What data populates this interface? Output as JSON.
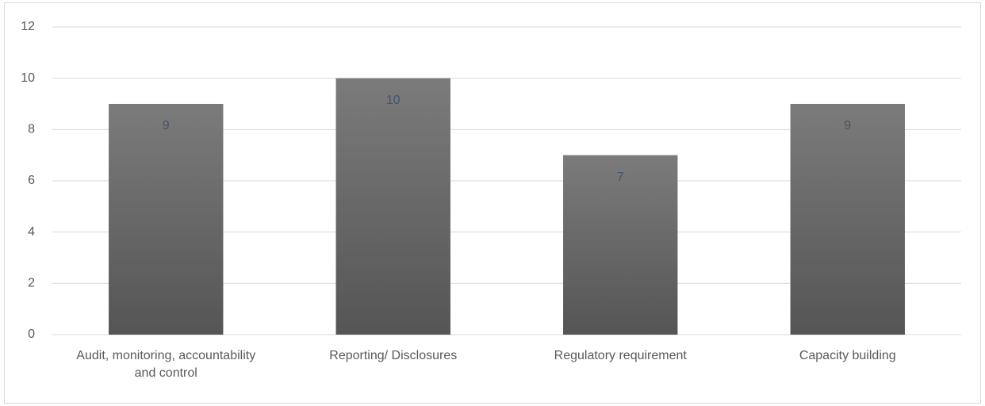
{
  "chart_data": {
    "type": "bar",
    "categories": [
      "Audit, monitoring, accountability and control",
      "Reporting/  Disclosures",
      "Regulatory requirement",
      "Capacity building"
    ],
    "values": [
      9,
      10,
      7,
      9
    ],
    "color": "#555555",
    "label_color": "#44546a",
    "ylim": [
      0,
      12
    ],
    "yticks": [
      0,
      2,
      4,
      6,
      8,
      10,
      12
    ],
    "grid": true
  }
}
